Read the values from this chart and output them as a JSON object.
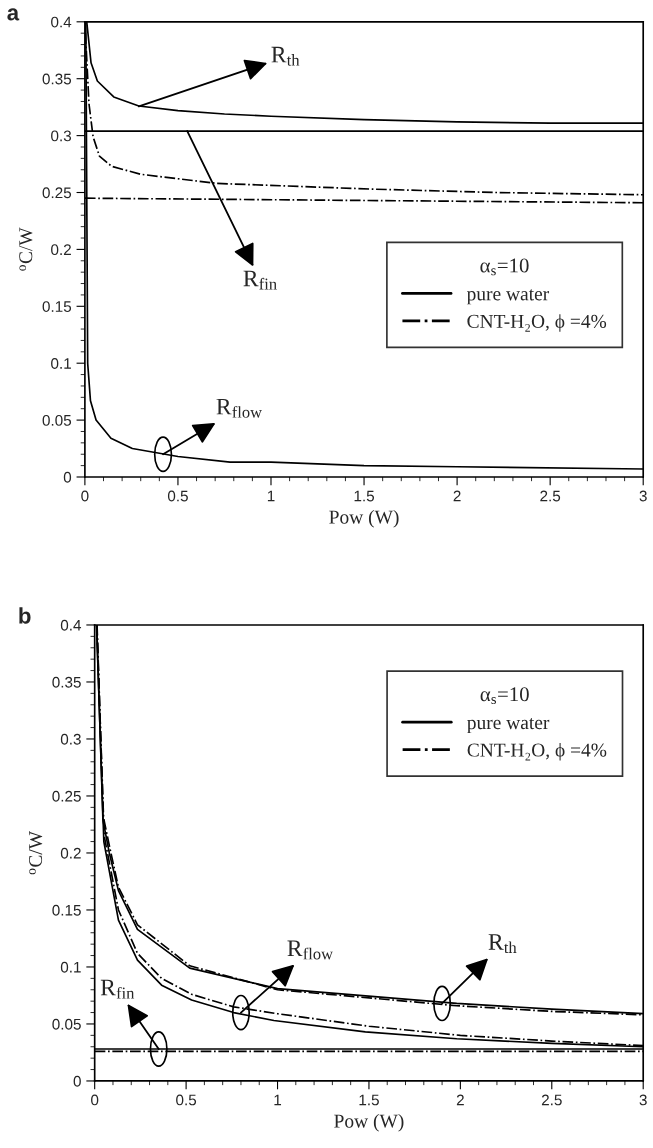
{
  "chart_data": [
    {
      "type": "line",
      "title": "a",
      "xlabel": "Pow (W)",
      "ylabel": "$^{o}$C/W",
      "legend_title": "α$_{s}$=10",
      "legend": "right",
      "xlim": [
        0,
        3
      ],
      "ylim": [
        0,
        0.4
      ],
      "xticks": [
        0,
        0.5,
        1,
        1.5,
        2,
        2.5,
        3
      ],
      "yticks": [
        0,
        0.05,
        0.1,
        0.15,
        0.2,
        0.25,
        0.3,
        0.35,
        0.4
      ],
      "grid": false,
      "series": [
        {
          "name": "pure water",
          "color": "#000000",
          "line_style": "solid",
          "x": [
            0.01,
            0.033,
            0.067,
            0.155,
            0.29,
            0.5,
            0.75,
            1,
            1.5,
            2,
            2.5,
            3
          ],
          "values": [
            0.4,
            0.364,
            0.348,
            0.334,
            0.326,
            0.322,
            0.319,
            0.317,
            0.314,
            0.312,
            0.311,
            0.311
          ]
        },
        {
          "name": "CNT-H₂O, ϕ =4%",
          "color": "#000000",
          "line_style": "dashdot",
          "x": [
            0.003,
            0.022,
            0.044,
            0.078,
            0.144,
            0.3,
            0.71,
            1.54,
            2.21,
            3
          ],
          "values": [
            0.39,
            0.328,
            0.299,
            0.282,
            0.273,
            0.266,
            0.258,
            0.253,
            0.25,
            0.248
          ]
        },
        {
          "color": "#000000",
          "line_style": "solid",
          "x": [
            0,
            3
          ],
          "values": [
            0.304,
            0.304
          ]
        },
        {
          "color": "#000000",
          "line_style": "dashdot",
          "x": [
            0,
            3
          ],
          "values": [
            0.245,
            0.241
          ]
        },
        {
          "color": "#000000",
          "line_style": "solid",
          "x": [
            0.005,
            0.015,
            0.03,
            0.06,
            0.14,
            0.255,
            0.5,
            0.78,
            1,
            1.5,
            2,
            3
          ],
          "values": [
            0.4,
            0.1,
            0.067,
            0.05,
            0.034,
            0.025,
            0.018,
            0.013,
            0.013,
            0.01,
            0.009,
            0.007
          ]
        }
      ],
      "annotations": [
        {
          "text": "R$_{th}$",
          "x": 0.29,
          "y": 0.3257
        },
        {
          "text": "R$_{fin}$",
          "x": 0.55,
          "y": 0.304
        },
        {
          "text": "R$_{flow}$",
          "x": 0.42,
          "y": 0.02
        }
      ]
    },
    {
      "type": "line",
      "title": "b",
      "xlabel": "Pow (W)",
      "ylabel": "$^{o}$C/W",
      "legend_title": "α$_{s}$=10",
      "legend": "top right",
      "xlim": [
        0,
        3
      ],
      "ylim": [
        0,
        0.4
      ],
      "xticks": [
        0,
        0.5,
        1,
        1.5,
        2,
        2.5,
        3
      ],
      "yticks": [
        0,
        0.05,
        0.1,
        0.15,
        0.2,
        0.25,
        0.3,
        0.35,
        0.4
      ],
      "grid": false,
      "series": [
        {
          "name": "pure water",
          "color": "#000000",
          "line_style": "solid",
          "x": [
            0.011,
            0.045,
            0.08,
            0.13,
            0.234,
            0.52,
            1,
            1.98,
            2.5,
            3
          ],
          "values": [
            0.4,
            0.229,
            0.2,
            0.167,
            0.133,
            0.099,
            0.081,
            0.068,
            0.063,
            0.059
          ]
        },
        {
          "name": "CNT-H₂O, ϕ =4%",
          "color": "#000000",
          "line_style": "dashdot",
          "x": [
            0.013,
            0.047,
            0.082,
            0.13,
            0.234,
            0.52,
            1,
            1.98,
            2.5,
            3
          ],
          "values": [
            0.4,
            0.232,
            0.205,
            0.17,
            0.137,
            0.101,
            0.08,
            0.066,
            0.061,
            0.058
          ]
        },
        {
          "color": "#000000",
          "line_style": "solid",
          "x": [
            0.01,
            0.05,
            0.13,
            0.234,
            0.366,
            0.53,
            0.76,
            0.98,
            1.48,
            1.98,
            2.5,
            3
          ],
          "values": [
            0.4,
            0.21,
            0.141,
            0.106,
            0.084,
            0.071,
            0.06,
            0.053,
            0.043,
            0.037,
            0.033,
            0.03
          ]
        },
        {
          "color": "#000000",
          "line_style": "dashdot",
          "x": [
            0.012,
            0.052,
            0.13,
            0.234,
            0.366,
            0.53,
            0.76,
            1,
            1.5,
            2,
            2.5,
            3
          ],
          "values": [
            0.4,
            0.215,
            0.15,
            0.112,
            0.09,
            0.076,
            0.065,
            0.059,
            0.048,
            0.04,
            0.035,
            0.031
          ]
        },
        {
          "color": "#000000",
          "line_style": "solid",
          "x": [
            0,
            3
          ],
          "values": [
            0.028,
            0.028
          ]
        },
        {
          "color": "#000000",
          "line_style": "dashdot",
          "x": [
            0,
            3
          ],
          "values": [
            0.026,
            0.026
          ]
        }
      ],
      "annotations": [
        {
          "text": "R$_{th}$",
          "x": 1.9,
          "y": 0.068
        },
        {
          "text": "R$_{flow}$",
          "x": 0.8,
          "y": 0.06
        },
        {
          "text": "R$_{fin}$",
          "x": 0.35,
          "y": 0.028
        }
      ]
    }
  ]
}
